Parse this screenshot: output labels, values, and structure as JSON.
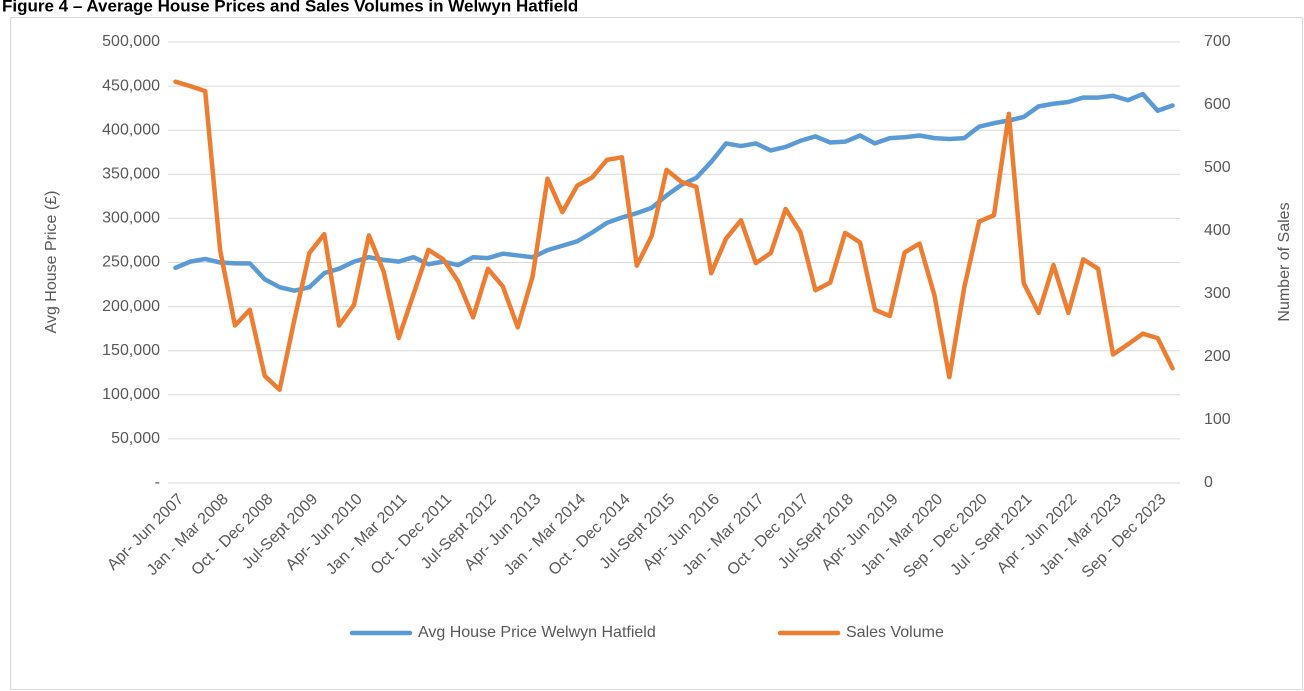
{
  "chart_data": {
    "type": "line",
    "title": "Figure 4 – Average House Prices and Sales Volumes in Welwyn Hatfield",
    "y_label": "Avg House Price (£)",
    "y2_label": "Number of Sales",
    "categories": [
      "Apr- Jun 2007",
      null,
      null,
      "Jan - Mar 2008",
      null,
      null,
      "Oct - Dec 2008",
      null,
      null,
      "Jul-Sept 2009",
      null,
      null,
      "Apr- Jun 2010",
      null,
      null,
      "Jan - Mar 2011",
      null,
      null,
      "Oct - Dec 2011",
      null,
      null,
      "Jul-Sept 2012",
      null,
      null,
      "Apr- Jun 2013",
      null,
      null,
      "Jan - Mar 2014",
      null,
      null,
      "Oct - Dec 2014",
      null,
      null,
      "Jul-Sept 2015",
      null,
      null,
      "Apr- Jun 2016",
      null,
      null,
      "Jan - Mar 2017",
      null,
      null,
      "Oct - Dec 2017",
      null,
      null,
      "Jul-Sept 2018",
      null,
      null,
      "Apr- Jun 2019",
      null,
      null,
      "Jan - Mar 2020",
      null,
      null,
      "Sep - Dec 2020",
      null,
      null,
      "Jul - Sept 2021",
      null,
      null,
      "Apr - Jun 2022",
      null,
      null,
      "Jan - Mar 2023",
      null,
      null,
      "Sep - Dec 2023",
      null
    ],
    "series": [
      {
        "name": "Avg House Price Welwyn Hatfield",
        "color": "#5b9bd5",
        "axis": "y",
        "values": [
          244000,
          251000,
          254000,
          250000,
          249000,
          249000,
          231000,
          222000,
          218000,
          222000,
          238000,
          243000,
          251000,
          256000,
          253000,
          251000,
          256000,
          248000,
          251000,
          247000,
          256000,
          255000,
          260000,
          258000,
          256000,
          264000,
          269000,
          274000,
          284000,
          295000,
          301000,
          306000,
          312000,
          326000,
          338000,
          346000,
          364000,
          385000,
          382000,
          385000,
          377000,
          381000,
          388000,
          393000,
          386000,
          387000,
          394000,
          385000,
          391000,
          392000,
          394000,
          391000,
          390000,
          391000,
          404000,
          408000,
          411000,
          415000,
          427000,
          430000,
          432000,
          437000,
          437000,
          439000,
          434000,
          441000,
          422000,
          428000
        ]
      },
      {
        "name": "Sales Volume",
        "color": "#ed7d31",
        "axis": "y2",
        "values": [
          637,
          630,
          622,
          370,
          250,
          275,
          170,
          148,
          260,
          365,
          395,
          250,
          283,
          393,
          335,
          230,
          300,
          370,
          355,
          320,
          263,
          340,
          312,
          247,
          328,
          483,
          430,
          472,
          485,
          513,
          517,
          345,
          392,
          497,
          478,
          470,
          333,
          388,
          417,
          349,
          365,
          435,
          398,
          306,
          318,
          397,
          382,
          275,
          265,
          366,
          380,
          298,
          168,
          310,
          415,
          425,
          586,
          317,
          270,
          346,
          270,
          355,
          340,
          204,
          220,
          237,
          230,
          182
        ]
      }
    ],
    "ylim": [
      0,
      500000
    ],
    "yticks": [
      {
        "value": 0,
        "label": "-"
      },
      {
        "value": 50000,
        "label": "50,000"
      },
      {
        "value": 100000,
        "label": "100,000"
      },
      {
        "value": 150000,
        "label": "150,000"
      },
      {
        "value": 200000,
        "label": "200,000"
      },
      {
        "value": 250000,
        "label": "250,000"
      },
      {
        "value": 300000,
        "label": "300,000"
      },
      {
        "value": 350000,
        "label": "350,000"
      },
      {
        "value": 400000,
        "label": "400,000"
      },
      {
        "value": 450000,
        "label": "450,000"
      },
      {
        "value": 500000,
        "label": "500,000"
      }
    ],
    "y2lim": [
      0,
      700
    ],
    "y2ticks": [
      0,
      100,
      200,
      300,
      400,
      500,
      600,
      700
    ],
    "grid": true,
    "legend": "bottom"
  }
}
